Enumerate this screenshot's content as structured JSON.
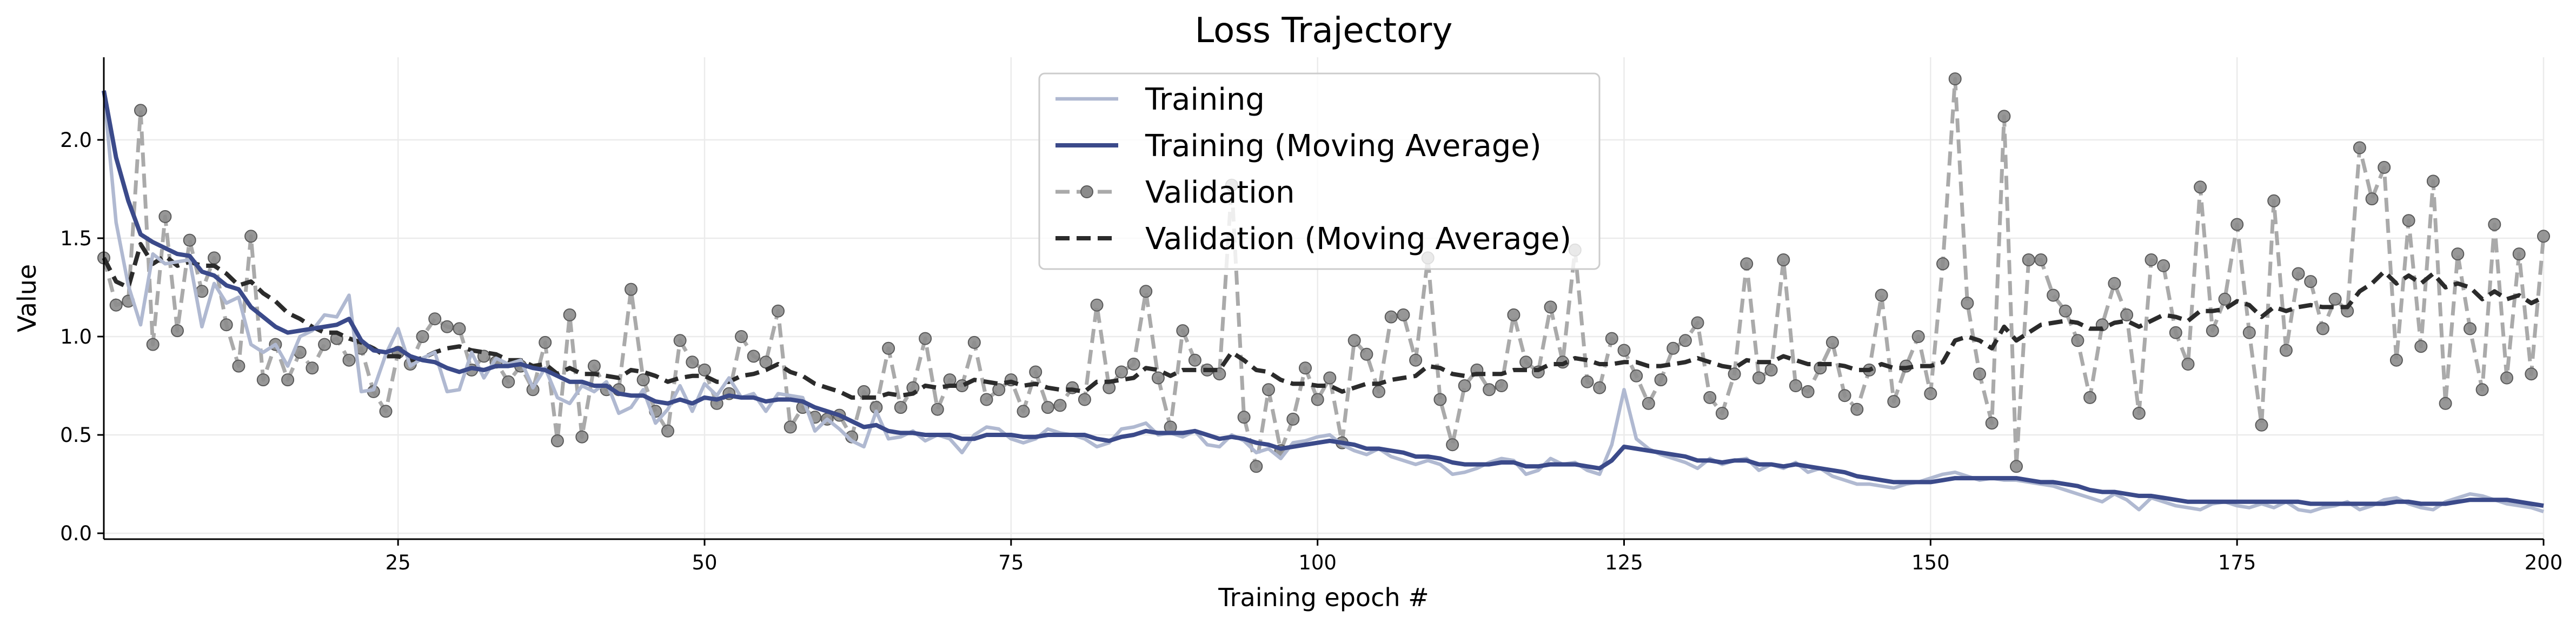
{
  "chart_data": {
    "type": "line",
    "title": "Loss Trajectory",
    "xlabel": "Training epoch #",
    "ylabel": "Value",
    "xlim": [
      1,
      200
    ],
    "ylim": [
      -0.03,
      2.42
    ],
    "xticks": [
      25,
      50,
      75,
      100,
      125,
      150,
      175,
      200
    ],
    "yticks": [
      0.0,
      0.5,
      1.0,
      1.5,
      2.0
    ],
    "ytick_labels": [
      "0.0",
      "0.5",
      "1.0",
      "1.5",
      "2.0"
    ],
    "grid": true,
    "legend_position": "top-center",
    "x": [
      1,
      2,
      3,
      4,
      5,
      6,
      7,
      8,
      9,
      10,
      11,
      12,
      13,
      14,
      15,
      16,
      17,
      18,
      19,
      20,
      21,
      22,
      23,
      24,
      25,
      26,
      27,
      28,
      29,
      30,
      31,
      32,
      33,
      34,
      35,
      36,
      37,
      38,
      39,
      40,
      41,
      42,
      43,
      44,
      45,
      46,
      47,
      48,
      49,
      50,
      51,
      52,
      53,
      54,
      55,
      56,
      57,
      58,
      59,
      60,
      61,
      62,
      63,
      64,
      65,
      66,
      67,
      68,
      69,
      70,
      71,
      72,
      73,
      74,
      75,
      76,
      77,
      78,
      79,
      80,
      81,
      82,
      83,
      84,
      85,
      86,
      87,
      88,
      89,
      90,
      91,
      92,
      93,
      94,
      95,
      96,
      97,
      98,
      99,
      100,
      101,
      102,
      103,
      104,
      105,
      106,
      107,
      108,
      109,
      110,
      111,
      112,
      113,
      114,
      115,
      116,
      117,
      118,
      119,
      120,
      121,
      122,
      123,
      124,
      125,
      126,
      127,
      128,
      129,
      130,
      131,
      132,
      133,
      134,
      135,
      136,
      137,
      138,
      139,
      140,
      141,
      142,
      143,
      144,
      145,
      146,
      147,
      148,
      149,
      150,
      151,
      152,
      153,
      154,
      155,
      156,
      157,
      158,
      159,
      160,
      161,
      162,
      163,
      164,
      165,
      166,
      167,
      168,
      169,
      170,
      171,
      172,
      173,
      174,
      175,
      176,
      177,
      178,
      179,
      180,
      181,
      182,
      183,
      184,
      185,
      186,
      187,
      188,
      189,
      190,
      191,
      192,
      193,
      194,
      195,
      196,
      197,
      198,
      199,
      200
    ],
    "series": [
      {
        "name": "Training",
        "color": "#b0b9d1",
        "style": "solid",
        "values": [
          2.25,
          1.58,
          1.26,
          1.06,
          1.42,
          1.37,
          1.38,
          1.39,
          1.05,
          1.27,
          1.17,
          1.2,
          0.96,
          0.92,
          0.96,
          0.85,
          1.0,
          1.03,
          1.11,
          1.1,
          1.21,
          0.72,
          0.73,
          0.91,
          1.04,
          0.85,
          0.89,
          0.92,
          0.72,
          0.73,
          0.92,
          0.79,
          0.89,
          0.86,
          0.88,
          0.74,
          0.84,
          0.69,
          0.66,
          0.75,
          0.72,
          0.77,
          0.61,
          0.64,
          0.73,
          0.56,
          0.63,
          0.75,
          0.62,
          0.76,
          0.7,
          0.79,
          0.69,
          0.71,
          0.62,
          0.71,
          0.7,
          0.69,
          0.52,
          0.58,
          0.53,
          0.47,
          0.44,
          0.62,
          0.48,
          0.49,
          0.52,
          0.47,
          0.5,
          0.48,
          0.41,
          0.5,
          0.54,
          0.53,
          0.48,
          0.46,
          0.48,
          0.53,
          0.51,
          0.5,
          0.48,
          0.44,
          0.46,
          0.53,
          0.54,
          0.56,
          0.5,
          0.51,
          0.49,
          0.52,
          0.45,
          0.44,
          0.5,
          0.47,
          0.41,
          0.43,
          0.38,
          0.46,
          0.47,
          0.49,
          0.5,
          0.45,
          0.42,
          0.4,
          0.43,
          0.39,
          0.37,
          0.35,
          0.37,
          0.35,
          0.3,
          0.31,
          0.33,
          0.36,
          0.38,
          0.37,
          0.3,
          0.32,
          0.38,
          0.35,
          0.36,
          0.32,
          0.3,
          0.45,
          0.73,
          0.48,
          0.43,
          0.4,
          0.38,
          0.36,
          0.33,
          0.38,
          0.35,
          0.37,
          0.38,
          0.32,
          0.35,
          0.33,
          0.36,
          0.31,
          0.33,
          0.29,
          0.27,
          0.25,
          0.25,
          0.24,
          0.23,
          0.25,
          0.26,
          0.28,
          0.3,
          0.31,
          0.29,
          0.27,
          0.28,
          0.27,
          0.27,
          0.26,
          0.25,
          0.24,
          0.22,
          0.2,
          0.18,
          0.16,
          0.2,
          0.17,
          0.12,
          0.18,
          0.16,
          0.14,
          0.13,
          0.12,
          0.15,
          0.16,
          0.14,
          0.13,
          0.15,
          0.13,
          0.16,
          0.12,
          0.11,
          0.13,
          0.14,
          0.16,
          0.12,
          0.14,
          0.17,
          0.18,
          0.15,
          0.13,
          0.12,
          0.16,
          0.18,
          0.2,
          0.19,
          0.17,
          0.15,
          0.14,
          0.13,
          0.11
        ]
      },
      {
        "name": "Training (Moving Average)",
        "color": "#3b4a8a",
        "style": "solid",
        "values": [
          2.25,
          1.91,
          1.69,
          1.52,
          1.48,
          1.45,
          1.42,
          1.41,
          1.33,
          1.31,
          1.26,
          1.24,
          1.15,
          1.1,
          1.05,
          1.02,
          1.03,
          1.04,
          1.05,
          1.06,
          1.09,
          0.98,
          0.93,
          0.92,
          0.94,
          0.9,
          0.88,
          0.87,
          0.84,
          0.82,
          0.84,
          0.83,
          0.85,
          0.85,
          0.86,
          0.84,
          0.83,
          0.8,
          0.77,
          0.77,
          0.75,
          0.75,
          0.71,
          0.7,
          0.7,
          0.67,
          0.66,
          0.68,
          0.66,
          0.69,
          0.68,
          0.7,
          0.69,
          0.69,
          0.67,
          0.68,
          0.68,
          0.67,
          0.64,
          0.62,
          0.6,
          0.57,
          0.54,
          0.55,
          0.52,
          0.51,
          0.51,
          0.5,
          0.5,
          0.5,
          0.48,
          0.48,
          0.5,
          0.5,
          0.5,
          0.49,
          0.49,
          0.5,
          0.5,
          0.5,
          0.5,
          0.48,
          0.47,
          0.49,
          0.5,
          0.52,
          0.51,
          0.51,
          0.51,
          0.52,
          0.5,
          0.48,
          0.49,
          0.48,
          0.46,
          0.45,
          0.43,
          0.44,
          0.45,
          0.46,
          0.47,
          0.46,
          0.45,
          0.43,
          0.43,
          0.42,
          0.41,
          0.39,
          0.39,
          0.38,
          0.36,
          0.35,
          0.35,
          0.35,
          0.36,
          0.36,
          0.34,
          0.34,
          0.35,
          0.35,
          0.35,
          0.34,
          0.33,
          0.37,
          0.44,
          0.43,
          0.42,
          0.41,
          0.4,
          0.39,
          0.37,
          0.37,
          0.36,
          0.37,
          0.37,
          0.35,
          0.35,
          0.34,
          0.35,
          0.34,
          0.33,
          0.32,
          0.31,
          0.29,
          0.28,
          0.27,
          0.26,
          0.26,
          0.26,
          0.26,
          0.27,
          0.28,
          0.28,
          0.28,
          0.28,
          0.28,
          0.28,
          0.27,
          0.26,
          0.26,
          0.25,
          0.24,
          0.22,
          0.21,
          0.21,
          0.2,
          0.19,
          0.19,
          0.18,
          0.17,
          0.16,
          0.16,
          0.16,
          0.16,
          0.16,
          0.16,
          0.16,
          0.16,
          0.16,
          0.16,
          0.15,
          0.15,
          0.15,
          0.15,
          0.15,
          0.15,
          0.15,
          0.16,
          0.16,
          0.15,
          0.15,
          0.15,
          0.16,
          0.17,
          0.17,
          0.17,
          0.17,
          0.16,
          0.15,
          0.14
        ]
      },
      {
        "name": "Validation",
        "color": "#aaaaaa",
        "style": "dashed",
        "marker": "circle",
        "values": [
          1.4,
          1.16,
          1.18,
          2.15,
          0.96,
          1.61,
          1.03,
          1.49,
          1.23,
          1.4,
          1.06,
          0.85,
          1.51,
          0.78,
          0.96,
          0.78,
          0.92,
          0.84,
          0.96,
          0.99,
          0.88,
          0.94,
          0.72,
          0.62,
          0.92,
          0.86,
          1.0,
          1.09,
          1.05,
          1.04,
          0.83,
          0.9,
          0.87,
          0.77,
          0.85,
          0.73,
          0.97,
          0.47,
          1.11,
          0.49,
          0.85,
          0.73,
          0.73,
          1.24,
          0.78,
          0.62,
          0.52,
          0.98,
          0.87,
          0.83,
          0.66,
          0.71,
          1.0,
          0.9,
          0.87,
          1.13,
          0.54,
          0.64,
          0.59,
          0.58,
          0.6,
          0.49,
          0.72,
          0.64,
          0.94,
          0.64,
          0.74,
          0.99,
          0.63,
          0.78,
          0.75,
          0.97,
          0.68,
          0.73,
          0.78,
          0.62,
          0.82,
          0.64,
          0.65,
          0.74,
          0.68,
          1.16,
          0.74,
          0.82,
          0.86,
          1.23,
          0.79,
          0.54,
          1.03,
          0.88,
          0.83,
          0.81,
          1.77,
          0.59,
          0.34,
          0.73,
          0.42,
          0.58,
          0.84,
          0.68,
          0.79,
          0.46,
          0.98,
          0.91,
          0.72,
          1.1,
          1.11,
          0.88,
          1.4,
          0.68,
          0.45,
          0.75,
          0.83,
          0.73,
          0.75,
          1.11,
          0.87,
          0.82,
          1.15,
          0.87,
          1.44,
          0.77,
          0.74,
          0.99,
          0.93,
          0.8,
          0.66,
          0.78,
          0.94,
          0.98,
          1.07,
          0.69,
          0.61,
          0.81,
          1.37,
          0.79,
          0.83,
          1.39,
          0.75,
          0.72,
          0.84,
          0.97,
          0.7,
          0.63,
          0.83,
          1.21,
          0.67,
          0.85,
          1.0,
          0.71,
          1.37,
          2.31,
          1.17,
          0.81,
          0.56,
          2.12,
          0.34,
          1.39,
          1.39,
          1.21,
          1.13,
          0.98,
          0.69,
          1.06,
          1.27,
          1.11,
          0.61,
          1.39,
          1.36,
          1.02,
          0.86,
          1.76,
          1.03,
          1.19,
          1.57,
          1.02,
          0.55,
          1.69,
          0.93,
          1.32,
          1.28,
          1.04,
          1.19,
          1.13,
          1.96,
          1.7,
          1.86,
          0.88,
          1.59,
          0.95,
          1.79,
          0.66,
          1.42,
          1.04,
          0.73,
          1.57,
          0.79,
          1.42,
          0.81,
          1.51
        ]
      },
      {
        "name": "Validation (Moving Average)",
        "color": "#2b2b2b",
        "style": "dashed",
        "values": [
          1.4,
          1.28,
          1.25,
          1.47,
          1.37,
          1.41,
          1.36,
          1.38,
          1.36,
          1.36,
          1.32,
          1.26,
          1.28,
          1.22,
          1.18,
          1.12,
          1.09,
          1.05,
          1.02,
          1.02,
          0.99,
          0.97,
          0.94,
          0.9,
          0.9,
          0.88,
          0.89,
          0.92,
          0.94,
          0.95,
          0.93,
          0.92,
          0.91,
          0.88,
          0.88,
          0.85,
          0.86,
          0.81,
          0.84,
          0.81,
          0.81,
          0.8,
          0.79,
          0.83,
          0.82,
          0.8,
          0.77,
          0.79,
          0.8,
          0.8,
          0.77,
          0.77,
          0.8,
          0.81,
          0.83,
          0.86,
          0.82,
          0.8,
          0.76,
          0.74,
          0.72,
          0.69,
          0.69,
          0.69,
          0.71,
          0.7,
          0.71,
          0.75,
          0.74,
          0.75,
          0.75,
          0.78,
          0.77,
          0.76,
          0.77,
          0.75,
          0.76,
          0.74,
          0.73,
          0.73,
          0.72,
          0.77,
          0.77,
          0.78,
          0.79,
          0.84,
          0.83,
          0.8,
          0.83,
          0.83,
          0.83,
          0.83,
          0.92,
          0.88,
          0.83,
          0.82,
          0.78,
          0.76,
          0.76,
          0.75,
          0.75,
          0.72,
          0.74,
          0.76,
          0.76,
          0.78,
          0.79,
          0.8,
          0.85,
          0.84,
          0.81,
          0.8,
          0.81,
          0.81,
          0.81,
          0.83,
          0.83,
          0.83,
          0.86,
          0.86,
          0.89,
          0.88,
          0.86,
          0.86,
          0.87,
          0.87,
          0.85,
          0.85,
          0.86,
          0.87,
          0.89,
          0.87,
          0.85,
          0.84,
          0.88,
          0.87,
          0.87,
          0.9,
          0.88,
          0.86,
          0.86,
          0.86,
          0.85,
          0.83,
          0.83,
          0.86,
          0.84,
          0.84,
          0.85,
          0.85,
          0.87,
          0.98,
          1.0,
          0.98,
          0.94,
          1.05,
          0.98,
          1.02,
          1.06,
          1.07,
          1.08,
          1.07,
          1.04,
          1.04,
          1.07,
          1.08,
          1.05,
          1.08,
          1.11,
          1.1,
          1.08,
          1.13,
          1.13,
          1.14,
          1.18,
          1.16,
          1.1,
          1.15,
          1.13,
          1.15,
          1.16,
          1.15,
          1.15,
          1.15,
          1.23,
          1.27,
          1.33,
          1.27,
          1.31,
          1.27,
          1.32,
          1.25,
          1.27,
          1.25,
          1.19,
          1.23,
          1.19,
          1.21,
          1.17,
          1.2
        ]
      }
    ]
  }
}
